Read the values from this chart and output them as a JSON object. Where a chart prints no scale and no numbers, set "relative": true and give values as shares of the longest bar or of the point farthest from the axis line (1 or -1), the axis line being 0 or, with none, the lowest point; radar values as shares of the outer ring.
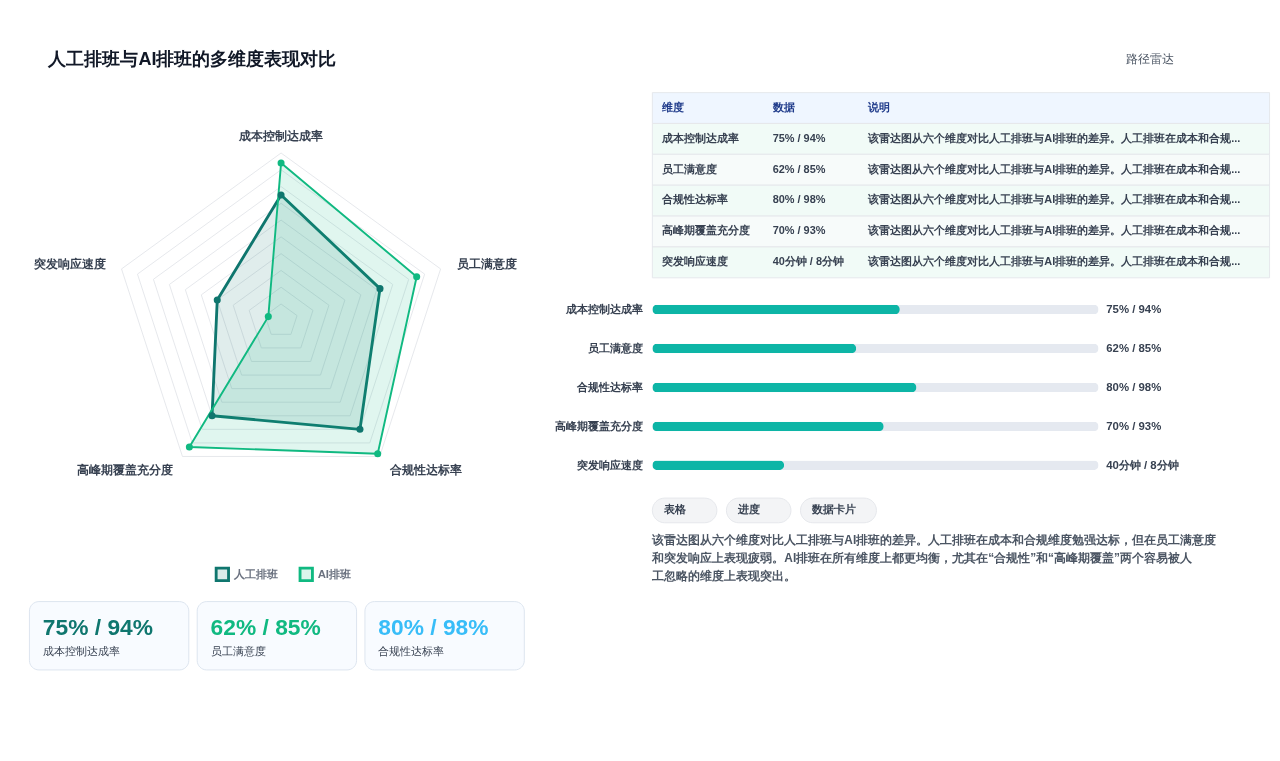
{
  "chart_data": [
    {
      "type": "other",
      "title": "人工排班与AI排班的多维度表现对比",
      "annotations": [
        "路径雷达"
      ]
    },
    {
      "type": "radar",
      "relative": true,
      "grid": true,
      "legend": "bottom",
      "marker": "circle",
      "categories": [
        "成本控制达成率",
        "员工满意度",
        "合规性达标率",
        "高峰期覆盖充分度",
        "突发响应速度"
      ],
      "series": [
        {
          "name": "人工排班",
          "color": "#0f766e",
          "values": [
            0.75,
            0.62,
            0.8,
            0.7,
            0.4
          ]
        },
        {
          "name": "AI排班",
          "color": "#10b981",
          "values": [
            0.94,
            0.85,
            0.98,
            0.93,
            0.08
          ]
        }
      ]
    },
    {
      "type": "other",
      "categories": [
        "维度",
        "数据",
        "说明"
      ],
      "cell_labels": [
        [
          "成本控制达成率",
          "75% / 94%",
          "该雷达图从六个维度对比人工排班与AI排班的差异。人工排班在成本和合规..."
        ],
        [
          "员工满意度",
          "62% / 85%",
          "该雷达图从六个维度对比人工排班与AI排班的差异。人工排班在成本和合规..."
        ],
        [
          "合规性达标率",
          "80% / 98%",
          "该雷达图从六个维度对比人工排班与AI排班的差异。人工排班在成本和合规..."
        ],
        [
          "高峰期覆盖充分度",
          "70% / 93%",
          "该雷达图从六个维度对比人工排班与AI排班的差异。人工排班在成本和合规..."
        ],
        [
          "突发响应速度",
          "40分钟 / 8分钟",
          "该雷达图从六个维度对比人工排班与AI排班的差异。人工排班在成本和合规..."
        ]
      ]
    },
    {
      "type": "bar",
      "orientation": "horizontal",
      "relative": true,
      "color": "#0db5a6",
      "categories": [
        "成本控制达成率",
        "员工满意度",
        "合规性达标率",
        "高峰期覆盖充分度",
        "突发响应速度"
      ],
      "values": [
        0.937,
        0.772,
        1,
        0.876,
        0.499
      ],
      "annotations": [
        "75% / 94%",
        "62% / 85%",
        "80% / 98%",
        "70% / 93%",
        "40分钟 / 8分钟"
      ]
    },
    {
      "type": "other",
      "categories": [
        "成本控制达成率",
        "员工满意度",
        "合规性达标率"
      ],
      "value_labels": [
        "75% / 94%",
        "62% / 85%",
        "80% / 98%"
      ]
    },
    {
      "type": "other",
      "categories": [
        "表格",
        "进度",
        "数据卡片"
      ],
      "annotations": [
        "该雷达图从六个维度对比人工排班与AI排班的差异。人工排班在成本和合规维度勉强达标，但在员工满意度和突发响应上表现疲弱。AI排班在所有维度上都更均衡，尤其在“合规性”和“高峰期覆盖”两个容易被人工忽略的维度上表现突出。"
      ]
    }
  ]
}
